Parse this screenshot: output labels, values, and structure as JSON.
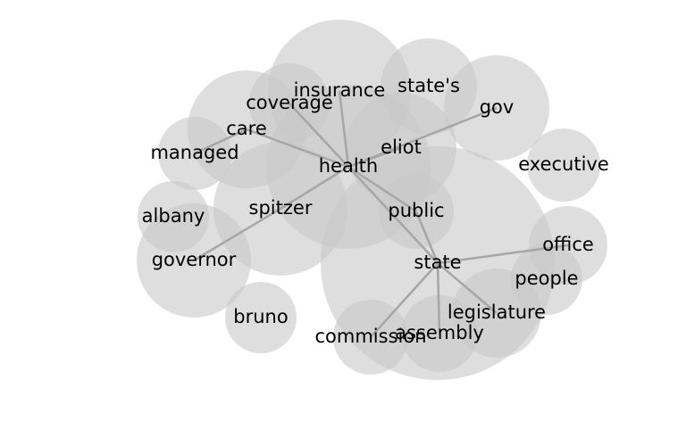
{
  "colors": {
    "bubble_fill": "#c8c8c8",
    "edge": "#a6a6a6",
    "label": "#000000",
    "background": "#ffffff"
  },
  "nodes": [
    {
      "id": "insurance",
      "label": "insurance"
    },
    {
      "id": "states",
      "label": "state's"
    },
    {
      "id": "coverage",
      "label": "coverage"
    },
    {
      "id": "gov",
      "label": "gov"
    },
    {
      "id": "care",
      "label": "care"
    },
    {
      "id": "eliot",
      "label": "eliot"
    },
    {
      "id": "managed",
      "label": "managed"
    },
    {
      "id": "health",
      "label": "health"
    },
    {
      "id": "executive",
      "label": "executive"
    },
    {
      "id": "spitzer",
      "label": "spitzer"
    },
    {
      "id": "public",
      "label": "public"
    },
    {
      "id": "albany",
      "label": "albany"
    },
    {
      "id": "office",
      "label": "office"
    },
    {
      "id": "governor",
      "label": "governor"
    },
    {
      "id": "state",
      "label": "state"
    },
    {
      "id": "people",
      "label": "people"
    },
    {
      "id": "bruno",
      "label": "bruno"
    },
    {
      "id": "legislature",
      "label": "legislature"
    },
    {
      "id": "commission",
      "label": "commission"
    },
    {
      "id": "assembly",
      "label": "assembly"
    }
  ],
  "edges": [
    [
      "health",
      "insurance"
    ],
    [
      "health",
      "coverage"
    ],
    [
      "health",
      "care"
    ],
    [
      "health",
      "eliot"
    ],
    [
      "health",
      "gov"
    ],
    [
      "health",
      "spitzer"
    ],
    [
      "health",
      "public"
    ],
    [
      "health",
      "state"
    ],
    [
      "care",
      "managed"
    ],
    [
      "spitzer",
      "governor"
    ],
    [
      "state",
      "public"
    ],
    [
      "state",
      "office"
    ],
    [
      "state",
      "legislature"
    ],
    [
      "state",
      "commission"
    ],
    [
      "state",
      "assembly"
    ]
  ]
}
